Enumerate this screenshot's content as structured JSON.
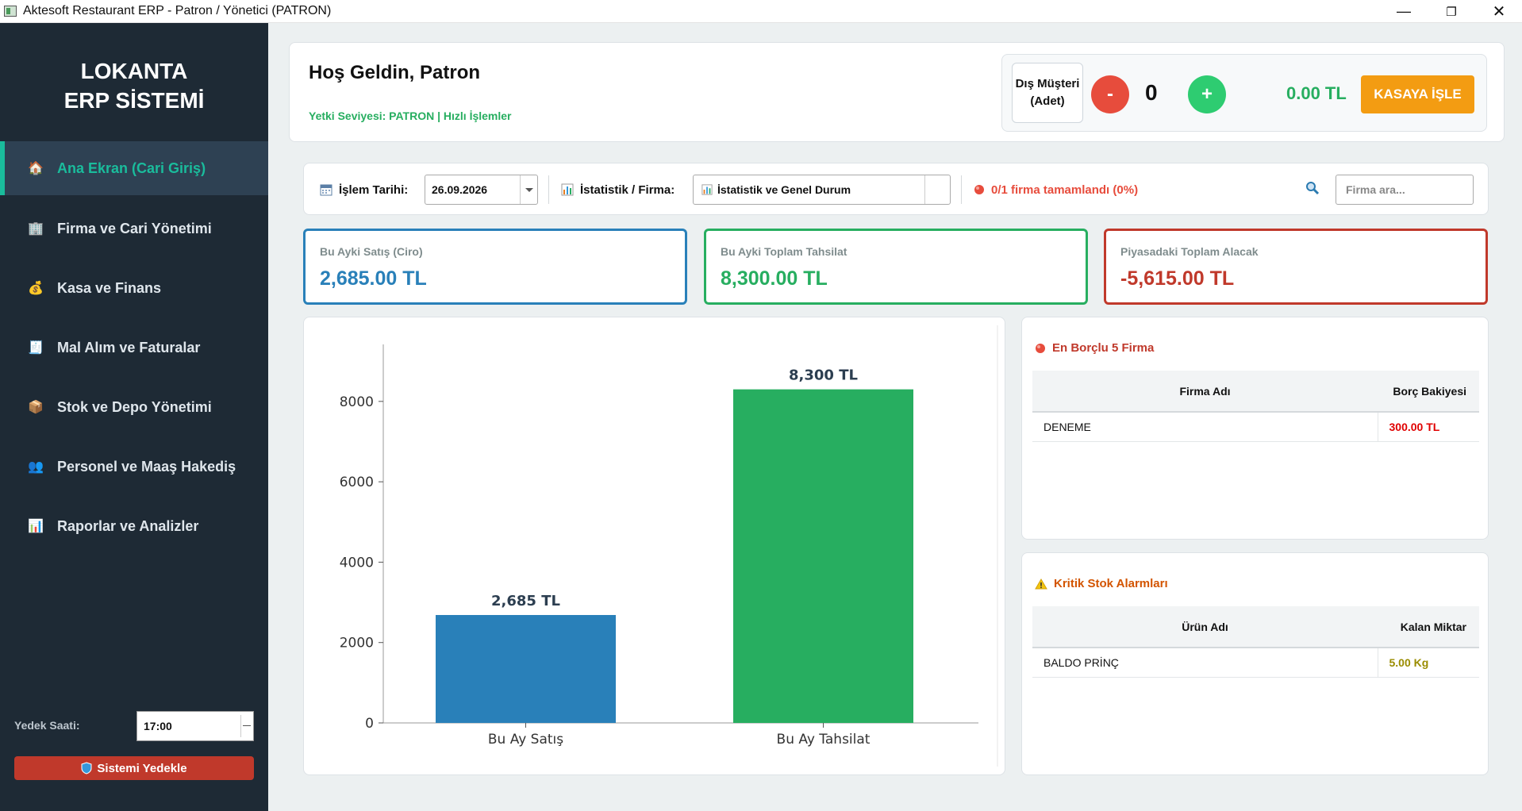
{
  "window": {
    "title": "Aktesoft Restaurant ERP - Patron / Yönetici (PATRON)"
  },
  "sidebar": {
    "brand_line1": "LOKANTA",
    "brand_line2": "ERP SİSTEMİ",
    "items": [
      {
        "label": "Ana Ekran (Cari Giriş)",
        "icon": "house-icon",
        "glyph": "🏠",
        "active": true
      },
      {
        "label": "Firma ve Cari Yönetimi",
        "icon": "building-icon",
        "glyph": "🏢"
      },
      {
        "label": "Kasa ve Finans",
        "icon": "money-bag-icon",
        "glyph": "💰"
      },
      {
        "label": "Mal Alım ve Faturalar",
        "icon": "receipt-icon",
        "glyph": "🧾"
      },
      {
        "label": "Stok ve Depo Yönetimi",
        "icon": "package-icon",
        "glyph": "📦"
      },
      {
        "label": "Personel ve Maaş Hakediş",
        "icon": "people-icon",
        "glyph": "👥"
      },
      {
        "label": "Raporlar ve Analizler",
        "icon": "bar-chart-icon",
        "glyph": "📊"
      }
    ],
    "backup_time_label": "Yedek Saati:",
    "backup_time_value": "17:00",
    "backup_button": "Sistemi Yedekle"
  },
  "header": {
    "welcome": "Hoş Geldin, Patron",
    "permission": "Yetki Seviyesi: PATRON | Hızlı İşlemler",
    "customer_label_1": "Dış Müşteri",
    "customer_label_2": "(Adet)",
    "minus": "-",
    "plus": "+",
    "count": "0",
    "total": "0.00 TL",
    "kasa_button": "KASAYA İŞLE"
  },
  "filter": {
    "date_label": "İşlem Tarihi:",
    "date_value": "26.09.2026",
    "stat_label": "İstatistik / Firma:",
    "stat_value": "İstatistik ve Genel Durum",
    "progress": "0/1 firma tamamlandı (0%)",
    "search_placeholder": "Firma ara..."
  },
  "kpis": [
    {
      "label": "Bu Ayki Satış (Ciro)",
      "value": "2,685.00 TL",
      "color": "#2980b9"
    },
    {
      "label": "Bu Ayki Toplam Tahsilat",
      "value": "8,300.00 TL",
      "color": "#27ae60"
    },
    {
      "label": "Piyasadaki Toplam Alacak",
      "value": "-5,615.00 TL",
      "color": "#c0392b"
    }
  ],
  "chart_data": {
    "type": "bar",
    "categories": [
      "Bu Ay Satış",
      "Bu Ay Tahsilat"
    ],
    "values": [
      2685,
      8300
    ],
    "data_labels": [
      "2,685 TL",
      "8,300 TL"
    ],
    "colors": [
      "#2980b9",
      "#27ae60"
    ],
    "yticks": [
      0,
      2000,
      4000,
      6000,
      8000
    ],
    "ylim": [
      0,
      9300
    ],
    "title": "",
    "xlabel": "",
    "ylabel": ""
  },
  "debtors": {
    "title": "En Borçlu 5 Firma",
    "col_name": "Firma Adı",
    "col_balance": "Borç Bakiyesi",
    "rows": [
      {
        "name": "DENEME",
        "balance": "300.00 TL"
      }
    ]
  },
  "stock": {
    "title": "Kritik Stok Alarmları",
    "col_name": "Ürün Adı",
    "col_qty": "Kalan Miktar",
    "rows": [
      {
        "name": "BALDO PRİNÇ",
        "qty": "5.00 Kg"
      }
    ]
  }
}
